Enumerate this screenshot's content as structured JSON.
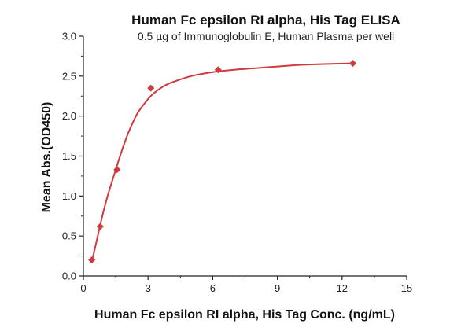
{
  "chart_data": {
    "type": "scatter",
    "title": "Human Fc epsilon RI alpha, His Tag ELISA",
    "subtitle": "0.5 µg of Immunoglobulin E, Human Plasma per well",
    "xlabel": "Human Fc epsilon RI alpha, His Tag Conc. (ng/mL)",
    "ylabel": "Mean Abs.(OD450)",
    "xlim": [
      0,
      15
    ],
    "ylim": [
      0,
      3.0
    ],
    "xticks": [
      "0",
      "3",
      "6",
      "9",
      "12",
      "15"
    ],
    "yticks": [
      "0.0",
      "0.5",
      "1.0",
      "1.5",
      "2.0",
      "2.5",
      "3.0"
    ],
    "grid": false,
    "color": "#d0393e",
    "series": [
      {
        "x": [
          0.39,
          0.78,
          1.56,
          3.13,
          6.25,
          12.5
        ],
        "y": [
          0.2,
          0.62,
          1.33,
          2.35,
          2.58,
          2.66
        ]
      }
    ],
    "fit_curve": {
      "x": [
        0.39,
        0.6,
        0.8,
        1.0,
        1.2,
        1.5,
        1.8,
        2.1,
        2.5,
        2.9,
        3.2,
        3.7,
        4.2,
        5.0,
        6.0,
        7.0,
        8.0,
        9.0,
        10.0,
        11.0,
        12.5
      ],
      "y": [
        0.18,
        0.42,
        0.66,
        0.88,
        1.07,
        1.33,
        1.58,
        1.8,
        2.03,
        2.18,
        2.27,
        2.37,
        2.43,
        2.5,
        2.55,
        2.58,
        2.6,
        2.62,
        2.64,
        2.65,
        2.66
      ]
    }
  }
}
